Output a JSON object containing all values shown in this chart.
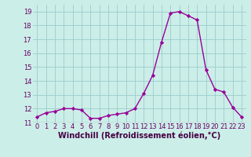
{
  "x": [
    0,
    1,
    2,
    3,
    4,
    5,
    6,
    7,
    8,
    9,
    10,
    11,
    12,
    13,
    14,
    15,
    16,
    17,
    18,
    19,
    20,
    21,
    22,
    23
  ],
  "y": [
    11.4,
    11.7,
    11.8,
    12.0,
    12.0,
    11.9,
    11.3,
    11.3,
    11.5,
    11.6,
    11.7,
    12.0,
    13.1,
    14.4,
    16.8,
    18.9,
    19.0,
    18.7,
    18.4,
    14.8,
    13.4,
    13.2,
    12.1,
    11.4
  ],
  "line_color": "#990099",
  "marker": "D",
  "marker_size": 2.2,
  "bg_color": "#cceee8",
  "grid_color": "#99cccc",
  "xlabel": "Windchill (Refroidissement éolien,°C)",
  "xlabel_fontsize": 7,
  "ylim": [
    11,
    19.5
  ],
  "xlim": [
    -0.5,
    23.5
  ],
  "yticks": [
    11,
    12,
    13,
    14,
    15,
    16,
    17,
    18,
    19
  ],
  "xticks": [
    0,
    1,
    2,
    3,
    4,
    5,
    6,
    7,
    8,
    9,
    10,
    11,
    12,
    13,
    14,
    15,
    16,
    17,
    18,
    19,
    20,
    21,
    22,
    23
  ],
  "tick_fontsize": 6,
  "line_width": 1.0
}
